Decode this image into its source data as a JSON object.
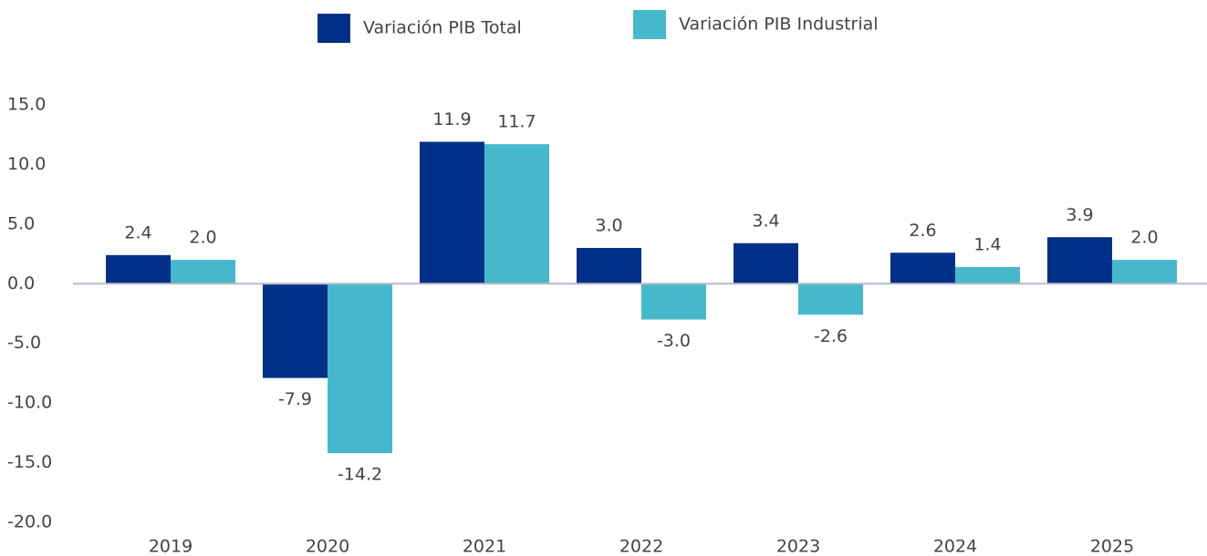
{
  "chart_data": {
    "type": "bar",
    "categories": [
      "2019",
      "2020",
      "2021",
      "2022",
      "2023",
      "2024",
      "2025"
    ],
    "series": [
      {
        "name": "Variación PIB Total",
        "color": "#003087",
        "values": [
          2.4,
          -7.9,
          11.9,
          3.0,
          3.4,
          2.6,
          3.9
        ],
        "value_labels": [
          "2.4",
          "-7.9",
          "11.9",
          "3.0",
          "3.4",
          "2.6",
          "3.9"
        ]
      },
      {
        "name": "Variación PIB Industrial",
        "color": "#45b8cc",
        "values": [
          2.0,
          -14.2,
          11.7,
          -3.0,
          -2.6,
          1.4,
          2.0
        ],
        "value_labels": [
          "2.0",
          "-14.2",
          "11.7",
          "-3.0",
          "-2.6",
          "1.4",
          "2.0"
        ]
      }
    ],
    "ylim": [
      -20,
      15
    ],
    "yticks": [
      {
        "value": 15,
        "label": "15.0"
      },
      {
        "value": 10,
        "label": "10.0"
      },
      {
        "value": 5,
        "label": "5.0"
      },
      {
        "value": 0,
        "label": "0.0"
      },
      {
        "value": -5,
        "label": "-5.0"
      },
      {
        "value": -10,
        "label": "-10.0"
      },
      {
        "value": -15,
        "label": "-15.0"
      },
      {
        "value": -20,
        "label": "-20.0"
      }
    ],
    "legend": "top"
  }
}
